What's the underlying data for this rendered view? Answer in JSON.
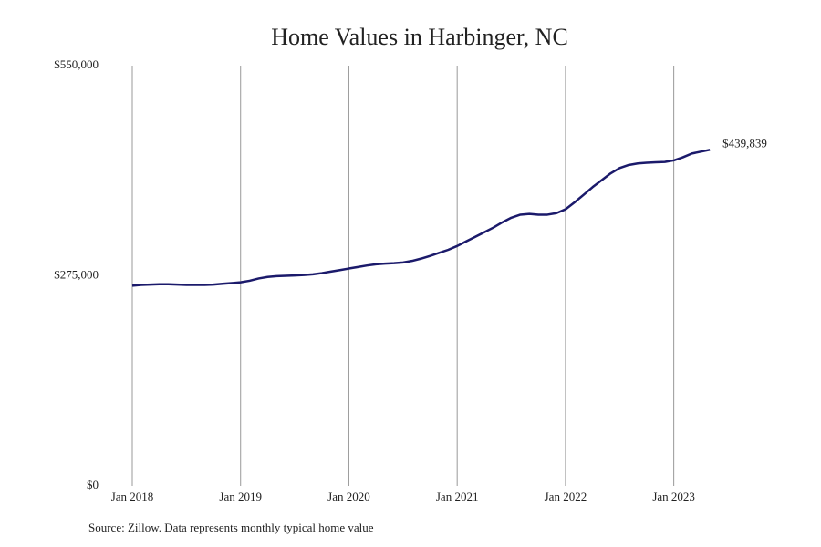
{
  "chart_data": {
    "type": "line",
    "title": "Home Values in Harbinger, NC",
    "source": "Source: Zillow. Data represents monthly typical home value",
    "x": [
      2018,
      2018.083,
      2018.167,
      2018.25,
      2018.333,
      2018.417,
      2018.5,
      2018.583,
      2018.667,
      2018.75,
      2018.833,
      2018.917,
      2019,
      2019.083,
      2019.167,
      2019.25,
      2019.333,
      2019.417,
      2019.5,
      2019.583,
      2019.667,
      2019.75,
      2019.833,
      2019.917,
      2020,
      2020.083,
      2020.167,
      2020.25,
      2020.333,
      2020.417,
      2020.5,
      2020.583,
      2020.667,
      2020.75,
      2020.833,
      2020.917,
      2021,
      2021.083,
      2021.167,
      2021.25,
      2021.333,
      2021.417,
      2021.5,
      2021.583,
      2021.667,
      2021.75,
      2021.833,
      2021.917,
      2022,
      2022.083,
      2022.167,
      2022.25,
      2022.333,
      2022.417,
      2022.5,
      2022.583,
      2022.667,
      2022.75,
      2022.833,
      2022.917,
      2023,
      2023.083,
      2023.167,
      2023.25,
      2023.333
    ],
    "series": [
      {
        "name": "Home value",
        "color": "#1b1a6b",
        "values": [
          262000,
          263000,
          263500,
          264000,
          264000,
          263500,
          263000,
          263000,
          263000,
          263500,
          264500,
          265500,
          266500,
          268500,
          271500,
          273500,
          274500,
          275000,
          275500,
          276000,
          277000,
          278500,
          280500,
          282500,
          284500,
          286500,
          288500,
          290000,
          291000,
          291500,
          292500,
          294500,
          297500,
          301000,
          305000,
          309000,
          314000,
          320000,
          326000,
          332000,
          338000,
          345000,
          351000,
          355000,
          356000,
          355000,
          355000,
          357000,
          362000,
          371000,
          381000,
          391000,
          400000,
          409000,
          416000,
          420000,
          422000,
          423000,
          423500,
          424000,
          426000,
          430000,
          435000,
          437500,
          439839
        ],
        "value_labels": [
          null,
          null,
          null,
          null,
          null,
          null,
          null,
          null,
          null,
          null,
          null,
          null,
          null,
          null,
          null,
          null,
          null,
          null,
          null,
          null,
          null,
          null,
          null,
          null,
          null,
          null,
          null,
          null,
          null,
          null,
          null,
          null,
          null,
          null,
          null,
          null,
          null,
          null,
          null,
          null,
          null,
          null,
          null,
          null,
          null,
          null,
          null,
          null,
          null,
          null,
          null,
          null,
          null,
          null,
          null,
          null,
          null,
          null,
          null,
          null,
          null,
          null,
          null,
          null,
          "$439,839"
        ]
      }
    ],
    "xlim": [
      2018,
      2023.5
    ],
    "xticks": [
      {
        "value": 2018,
        "label": "Jan 2018"
      },
      {
        "value": 2019,
        "label": "Jan 2019"
      },
      {
        "value": 2020,
        "label": "Jan 2020"
      },
      {
        "value": 2021,
        "label": "Jan 2021"
      },
      {
        "value": 2022,
        "label": "Jan 2022"
      },
      {
        "value": 2023,
        "label": "Jan 2023"
      }
    ],
    "ylim": [
      0,
      550000
    ],
    "yticks": [
      {
        "value": 0,
        "label": "$0"
      },
      {
        "value": 275000,
        "label": "$275,000"
      },
      {
        "value": 550000,
        "label": "$550,000"
      }
    ],
    "grid": "x"
  }
}
